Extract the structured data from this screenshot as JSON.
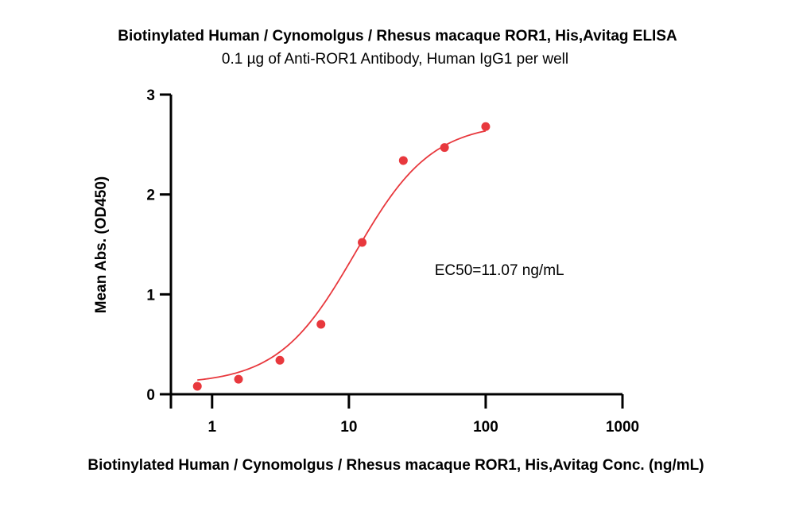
{
  "chart_data": {
    "type": "scatter",
    "title": "Biotinylated Human / Cynomolgus / Rhesus macaque ROR1, His,Avitag ELISA",
    "subtitle": "0.1 µg of Anti-ROR1 Antibody, Human IgG1 per well",
    "xlabel": "Biotinylated Human / Cynomolgus / Rhesus macaque ROR1, His,Avitag Conc. (ng/mL)",
    "ylabel": "Mean Abs. (OD450)",
    "xscale": "log",
    "xlim": [
      0.5,
      1000
    ],
    "ylim": [
      0,
      3
    ],
    "xticks": [
      1,
      10,
      100,
      1000
    ],
    "xtick_labels": [
      "1",
      "10",
      "100",
      "1000"
    ],
    "yticks": [
      0,
      1,
      2,
      3
    ],
    "ytick_labels": [
      "0",
      "1",
      "2",
      "3"
    ],
    "grid": false,
    "series": [
      {
        "x": [
          0.78,
          1.56,
          3.13,
          6.25,
          12.5,
          25,
          50,
          100
        ],
        "y": [
          0.08,
          0.15,
          0.34,
          0.7,
          1.52,
          2.34,
          2.47,
          2.68
        ],
        "color": "#e8383d",
        "fit_curve": "4PL"
      }
    ],
    "annotations": [
      {
        "text": "EC50=11.07 ng/mL",
        "x": 60,
        "y": 1.25
      }
    ]
  }
}
